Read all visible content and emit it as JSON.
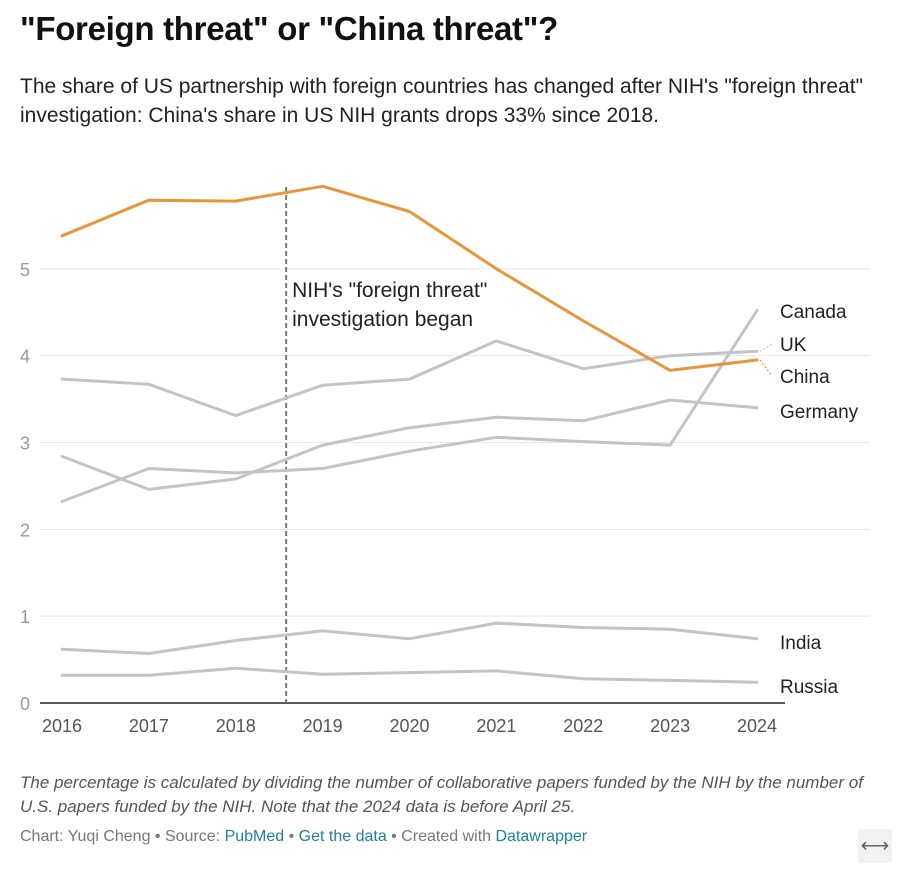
{
  "chart_data": {
    "type": "line",
    "title": "\"Foreign threat\" or \"China threat\"?",
    "subtitle": "The share of US partnership with foreign countries has changed after NIH's \"foreign threat\" investigation: China's share in US NIH grants drops 33% since 2018.",
    "x": [
      2016,
      2017,
      2018,
      2019,
      2020,
      2021,
      2022,
      2023,
      2024
    ],
    "ylim": [
      0,
      6
    ],
    "yticks": [
      0,
      1,
      2,
      3,
      4,
      5
    ],
    "grid": true,
    "series": [
      {
        "name": "Canada",
        "values": [
          2.32,
          2.7,
          2.65,
          2.7,
          2.9,
          3.06,
          3.01,
          2.97,
          4.52
        ],
        "color": "#c4c4c4"
      },
      {
        "name": "UK",
        "values": [
          3.73,
          3.67,
          3.31,
          3.66,
          3.73,
          4.17,
          3.85,
          4.0,
          4.05
        ],
        "color": "#c4c4c4"
      },
      {
        "name": "China",
        "values": [
          5.38,
          5.79,
          5.78,
          5.95,
          5.66,
          5.0,
          4.4,
          3.83,
          3.95
        ],
        "color": "#e8963a"
      },
      {
        "name": "Germany",
        "values": [
          2.84,
          2.46,
          2.58,
          2.97,
          3.17,
          3.29,
          3.25,
          3.49,
          3.4
        ],
        "color": "#c4c4c4"
      },
      {
        "name": "India",
        "values": [
          0.62,
          0.57,
          0.72,
          0.83,
          0.74,
          0.92,
          0.87,
          0.85,
          0.74
        ],
        "color": "#c4c4c4"
      },
      {
        "name": "Russia",
        "values": [
          0.32,
          0.32,
          0.4,
          0.33,
          0.35,
          0.37,
          0.28,
          0.26,
          0.24
        ],
        "color": "#c4c4c4"
      }
    ],
    "annotation": {
      "x": 2018.58,
      "lines": [
        "NIH's \"foreign threat\"",
        "investigation began"
      ]
    }
  },
  "notes": "The percentage is calculated by dividing the number of collaborative papers funded by the NIH by the number of U.S. papers funded by the NIH. Note that the 2024 data is before April 25.",
  "credits": {
    "chart": "Chart: Yuqi Cheng",
    "sep": " • ",
    "source_label": "Source: ",
    "source": "PubMed",
    "get_data": "Get the data",
    "created": "Created with ",
    "tool": "Datawrapper"
  },
  "expand_icon": "⟷"
}
